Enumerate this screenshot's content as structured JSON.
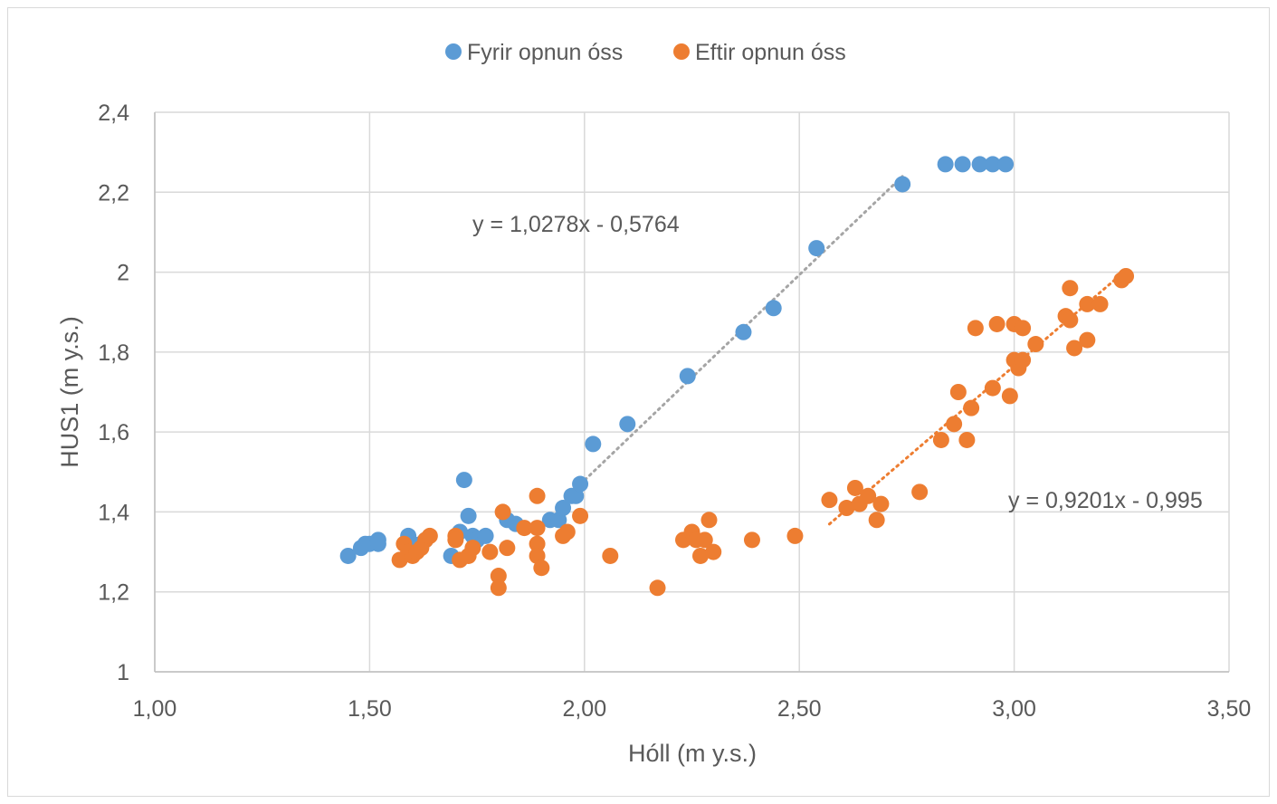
{
  "chart_data": {
    "type": "scatter",
    "title": "",
    "xlabel": "Hóll (m y.s.)",
    "ylabel": "HUS1 (m y.s.)",
    "xlim": [
      1.0,
      3.5
    ],
    "ylim": [
      1.0,
      2.4
    ],
    "x_ticks": [
      "1,00",
      "1,50",
      "2,00",
      "2,50",
      "3,00",
      "3,50"
    ],
    "x_tick_values": [
      1.0,
      1.5,
      2.0,
      2.5,
      3.0,
      3.5
    ],
    "y_ticks": [
      "1",
      "1,2",
      "1,4",
      "1,6",
      "1,8",
      "2",
      "2,2",
      "2,4"
    ],
    "y_tick_values": [
      1.0,
      1.2,
      1.4,
      1.6,
      1.8,
      2.0,
      2.2,
      2.4
    ],
    "grid": true,
    "legend_position": "top",
    "series": [
      {
        "name": "Fyrir opnun óss",
        "color": "#5b9bd5",
        "points": [
          [
            1.45,
            1.29
          ],
          [
            1.48,
            1.31
          ],
          [
            1.49,
            1.32
          ],
          [
            1.5,
            1.32
          ],
          [
            1.52,
            1.33
          ],
          [
            1.52,
            1.32
          ],
          [
            1.59,
            1.34
          ],
          [
            1.6,
            1.32
          ],
          [
            1.62,
            1.32
          ],
          [
            1.63,
            1.33
          ],
          [
            1.69,
            1.29
          ],
          [
            1.71,
            1.35
          ],
          [
            1.72,
            1.48
          ],
          [
            1.73,
            1.39
          ],
          [
            1.74,
            1.34
          ],
          [
            1.75,
            1.33
          ],
          [
            1.77,
            1.34
          ],
          [
            1.82,
            1.38
          ],
          [
            1.84,
            1.37
          ],
          [
            1.92,
            1.38
          ],
          [
            1.94,
            1.38
          ],
          [
            1.95,
            1.41
          ],
          [
            1.97,
            1.44
          ],
          [
            1.98,
            1.44
          ],
          [
            1.99,
            1.47
          ],
          [
            2.02,
            1.57
          ],
          [
            2.1,
            1.62
          ],
          [
            2.24,
            1.74
          ],
          [
            2.37,
            1.85
          ],
          [
            2.44,
            1.91
          ],
          [
            2.54,
            2.06
          ],
          [
            2.74,
            2.22
          ],
          [
            2.84,
            2.27
          ],
          [
            2.88,
            2.27
          ],
          [
            2.92,
            2.27
          ],
          [
            2.95,
            2.27
          ],
          [
            2.98,
            2.27
          ]
        ],
        "trendline": {
          "equation": "y = 1,0278x - 0,5764",
          "slope": 1.0278,
          "intercept": -0.5764,
          "x_range": [
            1.98,
            2.74
          ],
          "color": "#a5a5a5"
        }
      },
      {
        "name": "Eftir opnun óss",
        "color": "#ed7d31",
        "points": [
          [
            1.57,
            1.28
          ],
          [
            1.58,
            1.32
          ],
          [
            1.59,
            1.3
          ],
          [
            1.6,
            1.29
          ],
          [
            1.61,
            1.3
          ],
          [
            1.62,
            1.31
          ],
          [
            1.63,
            1.33
          ],
          [
            1.64,
            1.34
          ],
          [
            1.7,
            1.34
          ],
          [
            1.7,
            1.33
          ],
          [
            1.71,
            1.28
          ],
          [
            1.73,
            1.29
          ],
          [
            1.74,
            1.31
          ],
          [
            1.78,
            1.3
          ],
          [
            1.8,
            1.24
          ],
          [
            1.8,
            1.21
          ],
          [
            1.81,
            1.4
          ],
          [
            1.82,
            1.31
          ],
          [
            1.86,
            1.36
          ],
          [
            1.89,
            1.44
          ],
          [
            1.89,
            1.36
          ],
          [
            1.89,
            1.32
          ],
          [
            1.89,
            1.29
          ],
          [
            1.9,
            1.26
          ],
          [
            1.95,
            1.34
          ],
          [
            1.96,
            1.35
          ],
          [
            1.99,
            1.39
          ],
          [
            2.06,
            1.29
          ],
          [
            2.17,
            1.21
          ],
          [
            2.23,
            1.33
          ],
          [
            2.25,
            1.35
          ],
          [
            2.26,
            1.33
          ],
          [
            2.27,
            1.29
          ],
          [
            2.28,
            1.33
          ],
          [
            2.29,
            1.38
          ],
          [
            2.3,
            1.3
          ],
          [
            2.39,
            1.33
          ],
          [
            2.49,
            1.34
          ],
          [
            2.57,
            1.43
          ],
          [
            2.61,
            1.41
          ],
          [
            2.63,
            1.46
          ],
          [
            2.64,
            1.42
          ],
          [
            2.66,
            1.44
          ],
          [
            2.68,
            1.38
          ],
          [
            2.69,
            1.42
          ],
          [
            2.78,
            1.45
          ],
          [
            2.83,
            1.58
          ],
          [
            2.86,
            1.62
          ],
          [
            2.87,
            1.7
          ],
          [
            2.89,
            1.58
          ],
          [
            2.9,
            1.66
          ],
          [
            2.91,
            1.86
          ],
          [
            2.95,
            1.71
          ],
          [
            2.96,
            1.87
          ],
          [
            2.99,
            1.69
          ],
          [
            3.0,
            1.87
          ],
          [
            3.0,
            1.78
          ],
          [
            3.01,
            1.76
          ],
          [
            3.02,
            1.78
          ],
          [
            3.02,
            1.86
          ],
          [
            3.05,
            1.82
          ],
          [
            3.12,
            1.89
          ],
          [
            3.13,
            1.96
          ],
          [
            3.13,
            1.88
          ],
          [
            3.14,
            1.81
          ],
          [
            3.17,
            1.92
          ],
          [
            3.17,
            1.83
          ],
          [
            3.2,
            1.92
          ],
          [
            3.25,
            1.98
          ],
          [
            3.26,
            1.99
          ]
        ],
        "trendline": {
          "equation": "y = 0,9201x - 0,995",
          "slope": 0.9201,
          "intercept": -0.995,
          "x_range": [
            2.57,
            3.26
          ],
          "color": "#ed7d31"
        }
      }
    ]
  }
}
